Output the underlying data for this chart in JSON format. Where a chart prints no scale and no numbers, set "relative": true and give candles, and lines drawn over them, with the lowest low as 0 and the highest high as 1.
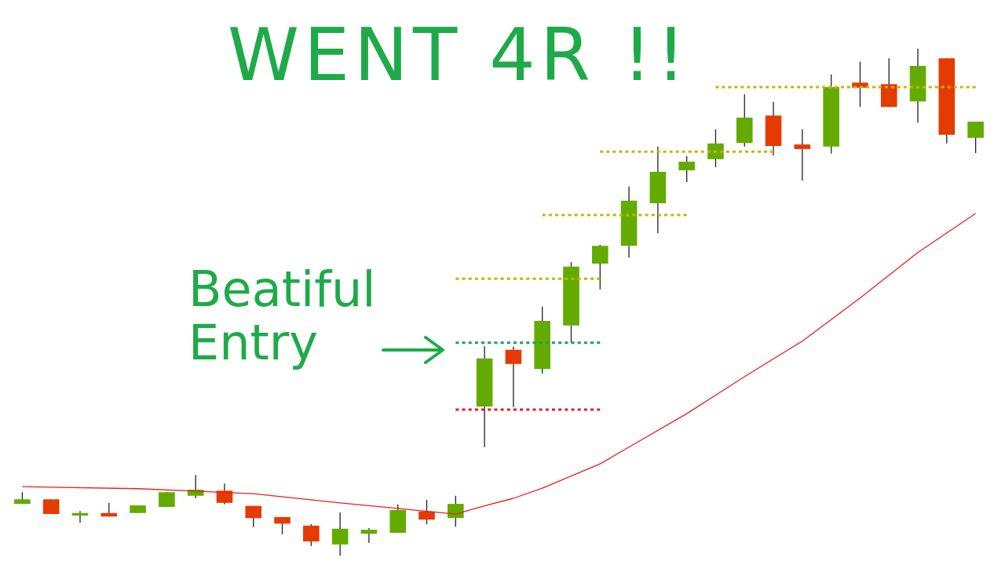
{
  "chart_data": {
    "type": "candlestick",
    "relative": true,
    "annotations": [
      "WENT 4R !!",
      "Beatiful Entry"
    ],
    "categories": [
      null,
      null,
      null,
      null,
      null,
      null,
      null,
      null,
      null,
      null,
      null,
      null,
      null,
      null,
      null,
      null,
      null,
      null,
      null,
      null,
      null,
      null,
      null,
      null,
      null,
      null,
      null,
      null,
      null,
      null,
      null,
      null,
      null,
      null
    ],
    "ohlc": [
      [
        0.102,
        0.125,
        0.102,
        0.111
      ],
      [
        0.111,
        0.111,
        0.082,
        0.082
      ],
      [
        0.079,
        0.088,
        0.065,
        0.084
      ],
      [
        0.084,
        0.104,
        0.077,
        0.077
      ],
      [
        0.084,
        0.099,
        0.084,
        0.099
      ],
      [
        0.096,
        0.125,
        0.096,
        0.125
      ],
      [
        0.118,
        0.159,
        0.113,
        0.13
      ],
      [
        0.128,
        0.142,
        0.101,
        0.104
      ],
      [
        0.098,
        0.098,
        0.056,
        0.074
      ],
      [
        0.076,
        0.076,
        0.042,
        0.063
      ],
      [
        0.059,
        0.062,
        0.019,
        0.028
      ],
      [
        0.022,
        0.085,
        0,
        0.053
      ],
      [
        0.043,
        0.054,
        0.025,
        0.051
      ],
      [
        0.045,
        0.101,
        0.045,
        0.09
      ],
      [
        0.087,
        0.11,
        0.062,
        0.071
      ],
      [
        0.074,
        0.118,
        0.057,
        0.102
      ],
      [
        0.294,
        0.413,
        0.214,
        0.389
      ],
      [
        0.406,
        0.412,
        0.293,
        0.378
      ],
      [
        0.368,
        0.491,
        0.359,
        0.463
      ],
      [
        0.454,
        0.579,
        0.42,
        0.57
      ],
      [
        0.576,
        0.613,
        0.525,
        0.611
      ],
      [
        0.611,
        0.728,
        0.588,
        0.7
      ],
      [
        0.695,
        0.807,
        0.636,
        0.757
      ],
      [
        0.76,
        0.788,
        0.737,
        0.777
      ],
      [
        0.782,
        0.841,
        0.766,
        0.813
      ],
      [
        0.814,
        0.91,
        0.807,
        0.864
      ],
      [
        0.868,
        0.895,
        0.789,
        0.808
      ],
      [
        0.811,
        0.841,
        0.74,
        0.802
      ],
      [
        0.807,
        0.949,
        0.793,
        0.924
      ],
      [
        0.933,
        0.974,
        0.885,
        0.923
      ],
      [
        0.93,
        0.981,
        0.885,
        0.885
      ],
      [
        0.896,
        1,
        0.854,
        0.966
      ],
      [
        0.981,
        0.981,
        0.813,
        0.83
      ],
      [
        0.824,
        0.856,
        0.794,
        0.856
      ]
    ],
    "colors": [
      "#63ab00",
      "#e53a00",
      "#63ab00",
      "#e53a00",
      "#63ab00",
      "#63ab00",
      "#63ab00",
      "#e53a00",
      "#e53a00",
      "#e53a00",
      "#e53a00",
      "#63ab00",
      "#63ab00",
      "#63ab00",
      "#e53a00",
      "#63ab00",
      "#63ab00",
      "#e53a00",
      "#63ab00",
      "#63ab00",
      "#63ab00",
      "#63ab00",
      "#63ab00",
      "#63ab00",
      "#63ab00",
      "#63ab00",
      "#e53a00",
      "#e53a00",
      "#63ab00",
      "#e53a00",
      "#e53a00",
      "#63ab00",
      "#e53a00",
      "#63ab00"
    ],
    "series": [
      {
        "type": "line",
        "color": "#e8201c",
        "line_style": "solid",
        "values": [
          0.136,
          0.135,
          null,
          null,
          0.132,
          null,
          0.127,
          null,
          0.122,
          null,
          null,
          0.104,
          null,
          0.093,
          null,
          0.082,
          0.098,
          0.113,
          0.133,
          null,
          0.181,
          0.214,
          null,
          0.28,
          null,
          0.353,
          null,
          0.423,
          null,
          0.508,
          null,
          0.598,
          null,
          0.675
        ]
      },
      {
        "type": "line",
        "color": "#e0202a",
        "line_style": "dotted",
        "values": [
          null,
          null,
          null,
          null,
          null,
          null,
          null,
          null,
          null,
          null,
          null,
          null,
          null,
          null,
          null,
          0.288,
          0.288,
          0.288,
          0.288,
          0.288,
          0.288,
          null,
          null,
          null,
          null,
          null,
          null,
          null,
          null,
          null,
          null,
          null,
          null,
          null
        ]
      },
      {
        "type": "line",
        "color": "#16a060",
        "line_style": "dotted",
        "values": [
          null,
          null,
          null,
          null,
          null,
          null,
          null,
          null,
          null,
          null,
          null,
          null,
          null,
          null,
          null,
          0.42,
          0.42,
          0.42,
          0.42,
          0.42,
          0.42,
          null,
          null,
          null,
          null,
          null,
          null,
          null,
          null,
          null,
          null,
          null,
          null,
          null
        ]
      },
      {
        "type": "line",
        "color": "#c8b400",
        "line_style": "dotted",
        "values": [
          null,
          null,
          null,
          null,
          null,
          null,
          null,
          null,
          null,
          null,
          null,
          null,
          null,
          null,
          null,
          0.546,
          0.546,
          0.546,
          0.546,
          0.546,
          0.546,
          null,
          null,
          null,
          null,
          null,
          null,
          null,
          null,
          null,
          null,
          null,
          null,
          null
        ]
      },
      {
        "type": "line",
        "color": "#c8b400",
        "line_style": "dotted",
        "values": [
          null,
          null,
          null,
          null,
          null,
          null,
          null,
          null,
          null,
          null,
          null,
          null,
          null,
          null,
          null,
          null,
          null,
          null,
          0.672,
          0.672,
          0.672,
          0.672,
          0.672,
          0.672,
          null,
          null,
          null,
          null,
          null,
          null,
          null,
          null,
          null,
          null
        ]
      },
      {
        "type": "line",
        "color": "#c8b400",
        "line_style": "dotted",
        "values": [
          null,
          null,
          null,
          null,
          null,
          null,
          null,
          null,
          null,
          null,
          null,
          null,
          null,
          null,
          null,
          null,
          null,
          null,
          null,
          null,
          0.797,
          0.797,
          0.797,
          0.797,
          0.797,
          0.797,
          0.797,
          null,
          null,
          null,
          null,
          null,
          null,
          null
        ]
      },
      {
        "type": "line",
        "color": "#c8b400",
        "line_style": "dotted",
        "values": [
          null,
          null,
          null,
          null,
          null,
          null,
          null,
          null,
          null,
          null,
          null,
          null,
          null,
          null,
          null,
          null,
          null,
          null,
          null,
          null,
          null,
          null,
          null,
          null,
          0.924,
          0.924,
          0.924,
          0.924,
          0.924,
          0.924,
          0.924,
          0.924,
          0.924,
          0.924
        ]
      }
    ]
  }
}
